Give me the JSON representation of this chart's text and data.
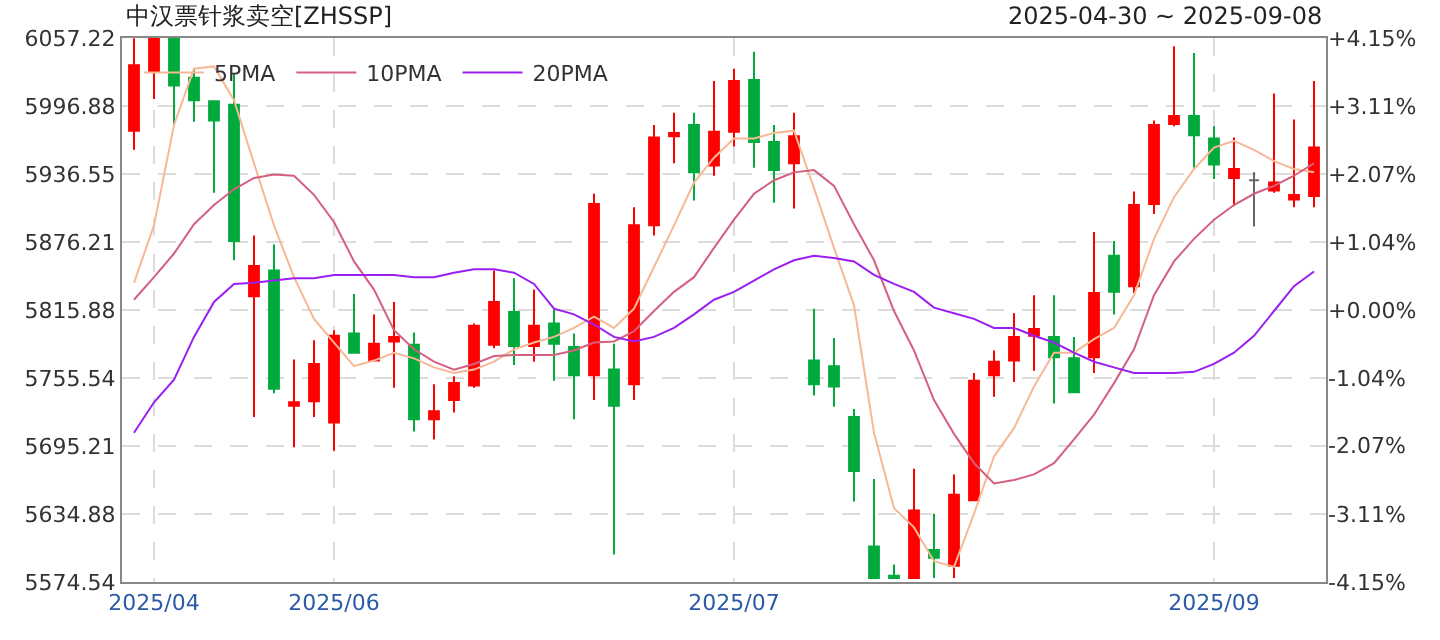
{
  "chart_data": {
    "type": "candlestick",
    "title": "中汉票针浆卖空[ZHSSP]",
    "subtitle": "2025-04-30 ~ 2025-09-08",
    "categories": [
      null,
      "2025/04",
      null,
      null,
      null,
      null,
      null,
      null,
      null,
      null,
      "2025/06",
      null,
      null,
      null,
      null,
      null,
      null,
      null,
      null,
      null,
      null,
      null,
      null,
      null,
      null,
      null,
      null,
      null,
      null,
      null,
      "2025/07",
      null,
      null,
      null,
      null,
      null,
      null,
      null,
      null,
      null,
      null,
      null,
      null,
      null,
      null,
      null,
      null,
      null,
      null,
      null,
      null,
      null,
      null,
      null,
      "2025/09",
      null,
      null,
      null,
      null,
      null
    ],
    "ohlc": [
      [
        5975,
        6057,
        5958,
        6033
      ],
      [
        6027,
        6057,
        6003,
        6057
      ],
      [
        6057,
        6057,
        5980,
        6015
      ],
      [
        6022,
        6030,
        5983,
        6002
      ],
      [
        6001,
        6001,
        5920,
        5984
      ],
      [
        5998,
        6025,
        5860,
        5877
      ],
      [
        5828,
        5882,
        5721,
        5855
      ],
      [
        5851,
        5874,
        5742,
        5746
      ],
      [
        5731,
        5772,
        5694,
        5734
      ],
      [
        5735,
        5789,
        5721,
        5768
      ],
      [
        5716,
        5798,
        5691,
        5793
      ],
      [
        5795,
        5830,
        5778,
        5778
      ],
      [
        5771,
        5812,
        5771,
        5786
      ],
      [
        5788,
        5823,
        5747,
        5792
      ],
      [
        5785,
        5796,
        5708,
        5719
      ],
      [
        5719,
        5750,
        5701,
        5726
      ],
      [
        5736,
        5757,
        5725,
        5751
      ],
      [
        5749,
        5804,
        5747,
        5802
      ],
      [
        5785,
        5851,
        5782,
        5823
      ],
      [
        5814,
        5844,
        5767,
        5784
      ],
      [
        5784,
        5834,
        5770,
        5802
      ],
      [
        5804,
        5817,
        5753,
        5786
      ],
      [
        5783,
        5795,
        5719,
        5758
      ],
      [
        5758,
        5919,
        5736,
        5910
      ],
      [
        5763,
        5786,
        5599,
        5731
      ],
      [
        5750,
        5907,
        5736,
        5891
      ],
      [
        5891,
        5980,
        5882,
        5969
      ],
      [
        5970,
        5991,
        5946,
        5973
      ],
      [
        5980,
        5991,
        5913,
        5938
      ],
      [
        5944,
        6019,
        5935,
        5974
      ],
      [
        5974,
        6030,
        5961,
        6019
      ],
      [
        6020,
        6045,
        5942,
        5965
      ],
      [
        5965,
        5980,
        5911,
        5940
      ],
      [
        5946,
        5991,
        5906,
        5970
      ],
      [
        5771,
        5817,
        5740,
        5750
      ],
      [
        5766,
        5791,
        5730,
        5748
      ],
      [
        5721,
        5728,
        5646,
        5673
      ],
      [
        5606,
        5666,
        5578,
        5578
      ],
      [
        5580,
        5590,
        5578,
        5578
      ],
      [
        5578,
        5675,
        5578,
        5638
      ],
      [
        5603,
        5635,
        5578,
        5596
      ],
      [
        5589,
        5670,
        5578,
        5652
      ],
      [
        5647,
        5760,
        5647,
        5753
      ],
      [
        5758,
        5780,
        5739,
        5770
      ],
      [
        5771,
        5813,
        5752,
        5792
      ],
      [
        5793,
        5829,
        5762,
        5799
      ],
      [
        5792,
        5829,
        5733,
        5774
      ],
      [
        5773,
        5792,
        5742,
        5743
      ],
      [
        5774,
        5885,
        5760,
        5831
      ],
      [
        5864,
        5877,
        5812,
        5832
      ],
      [
        5837,
        5921,
        5831,
        5909
      ],
      [
        5910,
        5984,
        5901,
        5980
      ],
      [
        5981,
        6050,
        5979,
        5988
      ],
      [
        5988,
        6044,
        5942,
        5971
      ],
      [
        5968,
        5979,
        5932,
        5945
      ],
      [
        5933,
        5969,
        5908,
        5941
      ],
      [
        5931,
        5938,
        5890,
        5931
      ],
      [
        5922,
        6008,
        5920,
        5929
      ],
      [
        5914,
        5985,
        5907,
        5918
      ],
      [
        5917,
        6019,
        5907,
        5960
      ]
    ],
    "colors": [
      "#ff0000",
      "#ff0000",
      "#00aa3b",
      "#00aa3b",
      "#00aa3b",
      "#00aa3b",
      "#ff0000",
      "#00aa3b",
      "#ff0000",
      "#ff0000",
      "#ff0000",
      "#00aa3b",
      "#ff0000",
      "#ff0000",
      "#00aa3b",
      "#ff0000",
      "#ff0000",
      "#ff0000",
      "#ff0000",
      "#00aa3b",
      "#ff0000",
      "#00aa3b",
      "#00aa3b",
      "#ff0000",
      "#00aa3b",
      "#ff0000",
      "#ff0000",
      "#ff0000",
      "#00aa3b",
      "#ff0000",
      "#ff0000",
      "#00aa3b",
      "#00aa3b",
      "#ff0000",
      "#00aa3b",
      "#00aa3b",
      "#00aa3b",
      "#00aa3b",
      "#00aa3b",
      "#ff0000",
      "#00aa3b",
      "#ff0000",
      "#ff0000",
      "#ff0000",
      "#ff0000",
      "#ff0000",
      "#00aa3b",
      "#00aa3b",
      "#ff0000",
      "#00aa3b",
      "#ff0000",
      "#ff0000",
      "#ff0000",
      "#00aa3b",
      "#00aa3b",
      "#ff0000",
      "#666666",
      "#ff0000",
      "#ff0000",
      "#ff0000"
    ],
    "series": [
      {
        "name": "5PMA",
        "type": "line",
        "color": "#f7b896",
        "values": [
          5840,
          5891,
          5980,
          6030,
          6032,
          6002,
          5946,
          5891,
          5845,
          5808,
          5787,
          5766,
          5771,
          5778,
          5773,
          5765,
          5760,
          5763,
          5770,
          5781,
          5787,
          5792,
          5800,
          5810,
          5800,
          5817,
          5854,
          5891,
          5929,
          5951,
          5968,
          5968,
          5973,
          5975,
          5924,
          5871,
          5820,
          5707,
          5640,
          5623,
          5593,
          5588,
          5635,
          5686,
          5711,
          5748,
          5778,
          5778,
          5790,
          5800,
          5829,
          5879,
          5916,
          5941,
          5960,
          5966,
          5958,
          5948,
          5941,
          5938
        ]
      },
      {
        "name": "10PMA",
        "type": "line",
        "color": "#d4607f",
        "values": [
          5825,
          5845,
          5866,
          5892,
          5909,
          5923,
          5933,
          5936,
          5935,
          5918,
          5894,
          5859,
          5834,
          5798,
          5781,
          5770,
          5763,
          5768,
          5775,
          5776,
          5776,
          5776,
          5780,
          5787,
          5788,
          5797,
          5815,
          5832,
          5845,
          5871,
          5896,
          5919,
          5931,
          5938,
          5940,
          5926,
          5892,
          5860,
          5815,
          5780,
          5736,
          5706,
          5680,
          5662,
          5665,
          5670,
          5680,
          5701,
          5723,
          5751,
          5781,
          5829,
          5859,
          5879,
          5896,
          5909,
          5919,
          5926,
          5935,
          5946
        ]
      },
      {
        "name": "20PMA",
        "type": "line",
        "color": "#9b1ff0",
        "values": [
          5707,
          5734,
          5754,
          5792,
          5823,
          5839,
          5840,
          5842,
          5844,
          5844,
          5847,
          5847,
          5847,
          5847,
          5845,
          5845,
          5849,
          5852,
          5852,
          5849,
          5839,
          5817,
          5812,
          5803,
          5792,
          5788,
          5792,
          5800,
          5812,
          5825,
          5832,
          5842,
          5852,
          5860,
          5864,
          5862,
          5859,
          5847,
          5839,
          5832,
          5818,
          5813,
          5808,
          5800,
          5800,
          5793,
          5787,
          5778,
          5770,
          5765,
          5760,
          5760,
          5760,
          5761,
          5768,
          5778,
          5793,
          5815,
          5837,
          5850
        ]
      }
    ],
    "ylim": [
      5574.54,
      6057.22
    ],
    "yticks": [
      5574.54,
      5634.88,
      5695.21,
      5755.54,
      5815.88,
      5876.21,
      5936.55,
      5996.88,
      6057.22
    ],
    "y2lim": [
      -4.15,
      4.15
    ],
    "y2ticks": [
      {
        "value": -4.15,
        "label": "-4.15%"
      },
      {
        "value": -3.11,
        "label": "-3.11%"
      },
      {
        "value": -2.07,
        "label": "-2.07%"
      },
      {
        "value": -1.04,
        "label": "-1.04%"
      },
      {
        "value": 0,
        "label": "+0.00%"
      },
      {
        "value": 1.04,
        "label": "+1.04%"
      },
      {
        "value": 2.07,
        "label": "+2.07%"
      },
      {
        "value": 3.11,
        "label": "+3.11%"
      },
      {
        "value": 4.15,
        "label": "+4.15%"
      }
    ],
    "grid": true,
    "legend": "top left",
    "line_style": "solid",
    "marker": "none"
  }
}
